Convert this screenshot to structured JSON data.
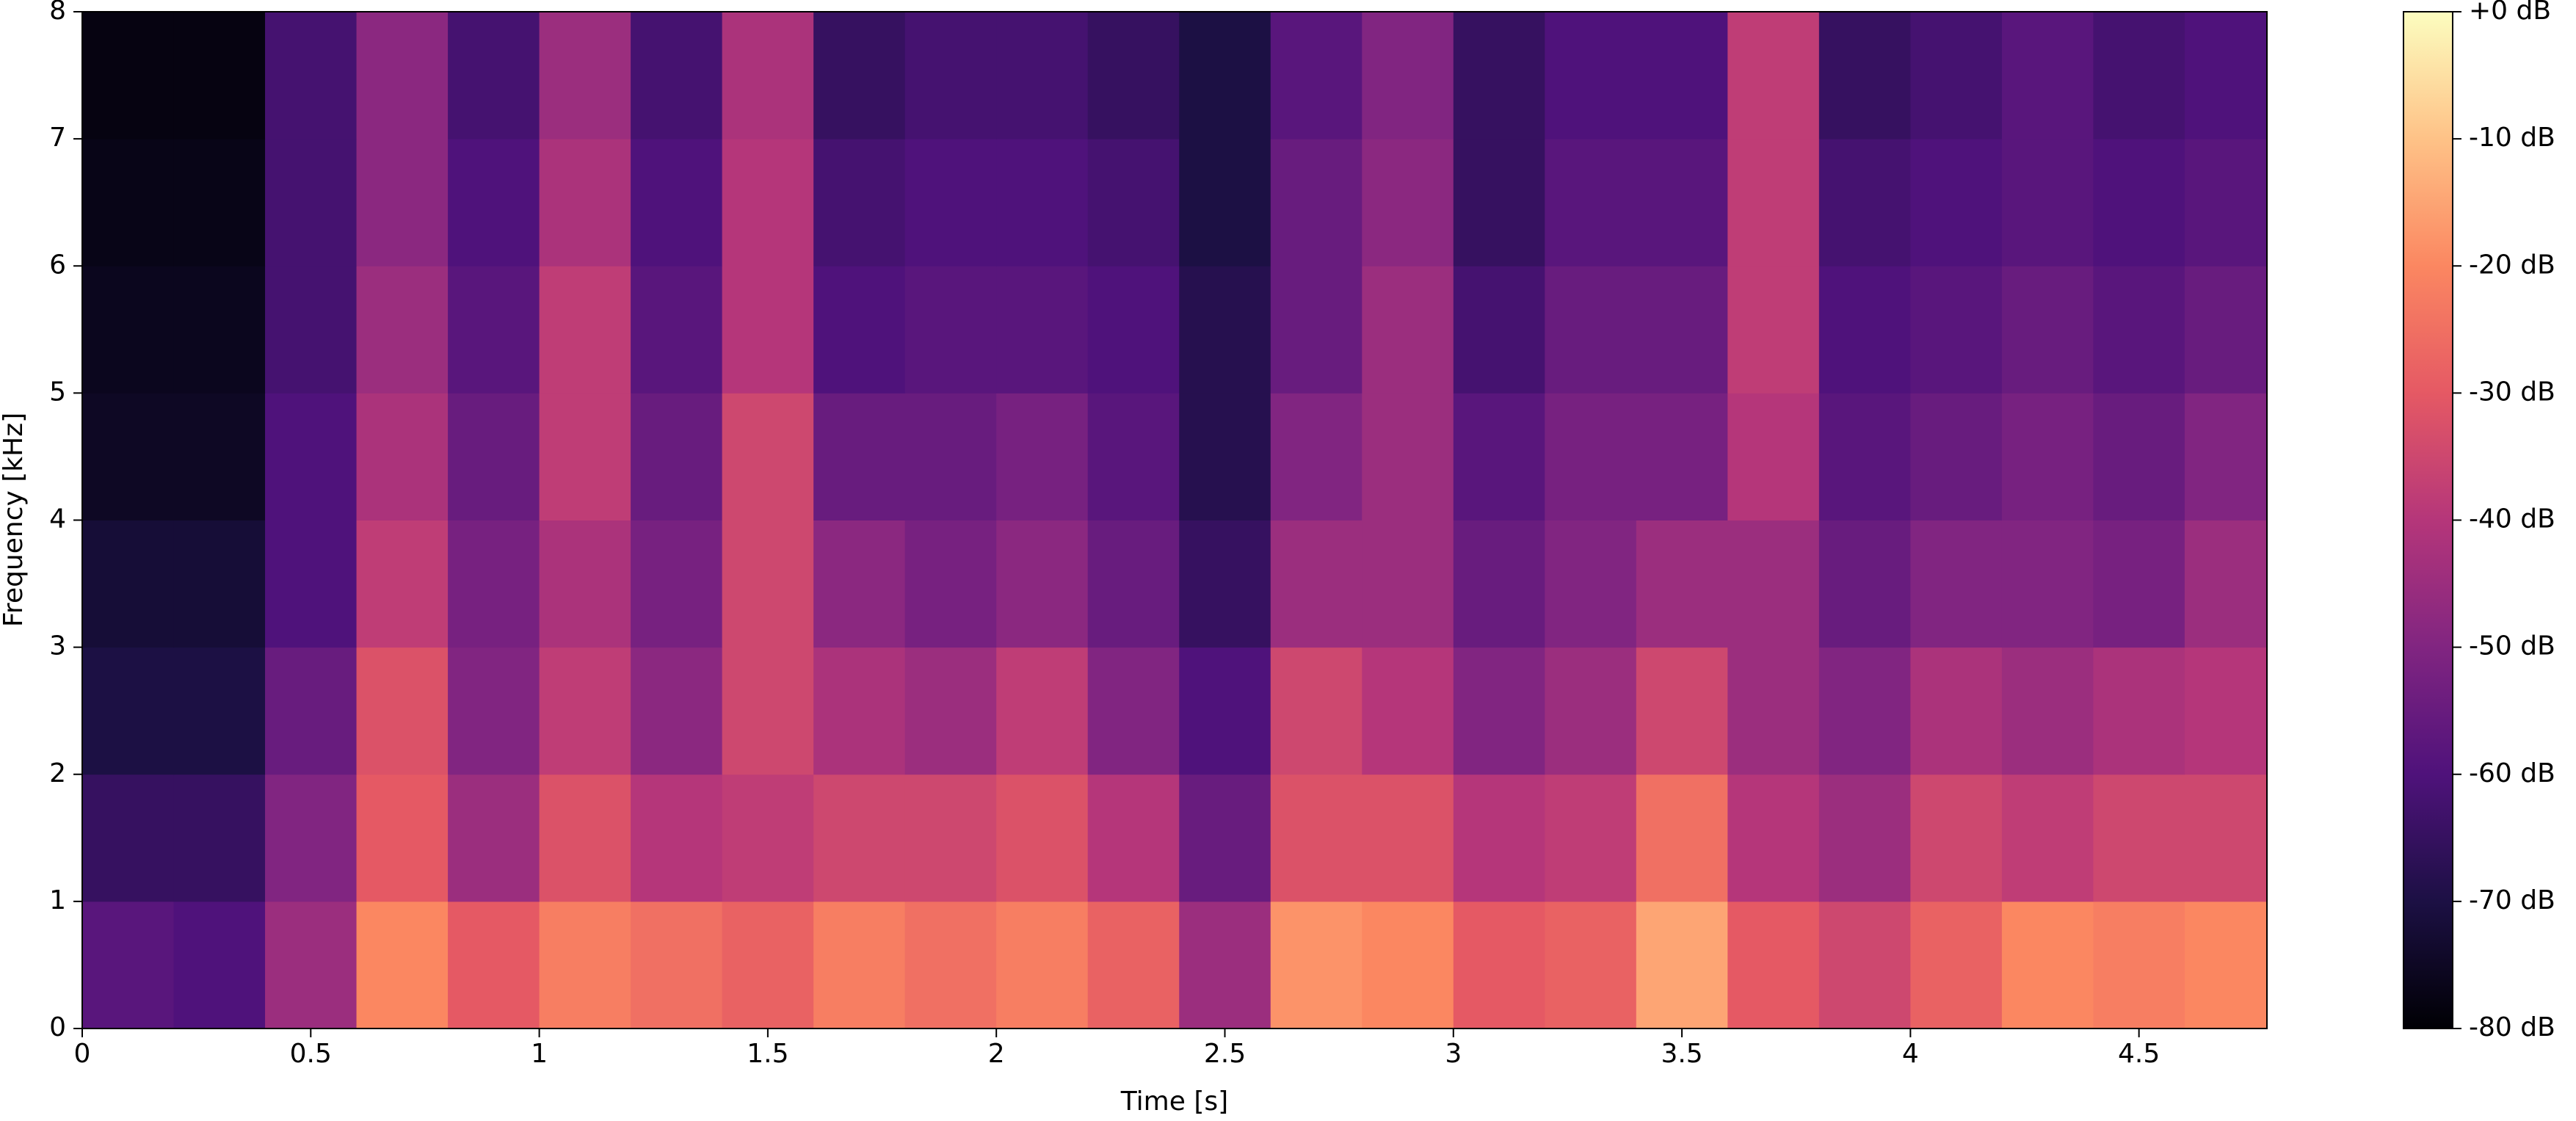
{
  "chart_data": {
    "type": "heatmap",
    "xlabel": "Time [s]",
    "ylabel": "Frequency [kHz]",
    "x": [
      0,
      0.2,
      0.4,
      0.6,
      0.8,
      1.0,
      1.2,
      1.4,
      1.6,
      1.8,
      2.0,
      2.2,
      2.4,
      2.6,
      2.8,
      3.0,
      3.2,
      3.4,
      3.6,
      3.8,
      4.0,
      4.2,
      4.4,
      4.6,
      4.78
    ],
    "y": [
      0,
      1,
      2,
      3,
      4,
      5,
      6,
      7,
      8
    ],
    "z": [
      [
        -58,
        -60,
        -45,
        -20,
        -30,
        -22,
        -25,
        -28,
        -22,
        -25,
        -22,
        -28,
        -45,
        -18,
        -20,
        -30,
        -28,
        -15,
        -30,
        -35,
        -28,
        -20,
        -22,
        -20
      ],
      [
        -65,
        -65,
        -50,
        -30,
        -45,
        -32,
        -40,
        -38,
        -35,
        -35,
        -32,
        -40,
        -55,
        -32,
        -32,
        -40,
        -38,
        -25,
        -40,
        -45,
        -35,
        -38,
        -35,
        -35
      ],
      [
        -70,
        -70,
        -55,
        -32,
        -50,
        -38,
        -48,
        -35,
        -42,
        -45,
        -38,
        -50,
        -60,
        -35,
        -40,
        -50,
        -45,
        -35,
        -45,
        -50,
        -42,
        -45,
        -42,
        -40
      ],
      [
        -72,
        -72,
        -60,
        -38,
        -52,
        -42,
        -52,
        -35,
        -48,
        -52,
        -48,
        -55,
        -65,
        -45,
        -45,
        -55,
        -50,
        -45,
        -45,
        -55,
        -50,
        -50,
        -52,
        -45
      ],
      [
        -75,
        -75,
        -60,
        -42,
        -55,
        -38,
        -55,
        -35,
        -55,
        -55,
        -52,
        -58,
        -68,
        -50,
        -45,
        -58,
        -52,
        -52,
        -40,
        -58,
        -55,
        -52,
        -55,
        -50
      ],
      [
        -76,
        -76,
        -62,
        -45,
        -58,
        -38,
        -58,
        -40,
        -60,
        -58,
        -58,
        -60,
        -68,
        -55,
        -45,
        -62,
        -55,
        -55,
        -38,
        -60,
        -58,
        -55,
        -58,
        -55
      ],
      [
        -77,
        -77,
        -62,
        -48,
        -60,
        -42,
        -60,
        -40,
        -62,
        -60,
        -60,
        -62,
        -70,
        -55,
        -48,
        -65,
        -58,
        -58,
        -38,
        -62,
        -60,
        -58,
        -60,
        -58
      ],
      [
        -78,
        -78,
        -62,
        -48,
        -62,
        -45,
        -62,
        -42,
        -65,
        -62,
        -62,
        -65,
        -70,
        -58,
        -50,
        -65,
        -60,
        -60,
        -38,
        -65,
        -62,
        -58,
        -62,
        -60
      ]
    ],
    "xlim": [
      0,
      4.78
    ],
    "ylim": [
      0,
      8
    ],
    "xticks": [
      0,
      0.5,
      1,
      1.5,
      2,
      2.5,
      3,
      3.5,
      4,
      4.5
    ],
    "yticks": [
      0,
      1,
      2,
      3,
      4,
      5,
      6,
      7,
      8
    ],
    "clim": [
      -80,
      0
    ],
    "cticks": [
      {
        "value": 0,
        "label": "+0 dB"
      },
      {
        "value": -10,
        "label": "-10 dB"
      },
      {
        "value": -20,
        "label": "-20 dB"
      },
      {
        "value": -30,
        "label": "-30 dB"
      },
      {
        "value": -40,
        "label": "-40 dB"
      },
      {
        "value": -50,
        "label": "-50 dB"
      },
      {
        "value": -60,
        "label": "-60 dB"
      },
      {
        "value": -70,
        "label": "-70 dB"
      },
      {
        "value": -80,
        "label": "-80 dB"
      }
    ],
    "colorscale": [
      "#000004",
      "#1c1044",
      "#4f127b",
      "#812581",
      "#b5367a",
      "#e55964",
      "#fb8761",
      "#fec287",
      "#fcfdbf"
    ]
  }
}
